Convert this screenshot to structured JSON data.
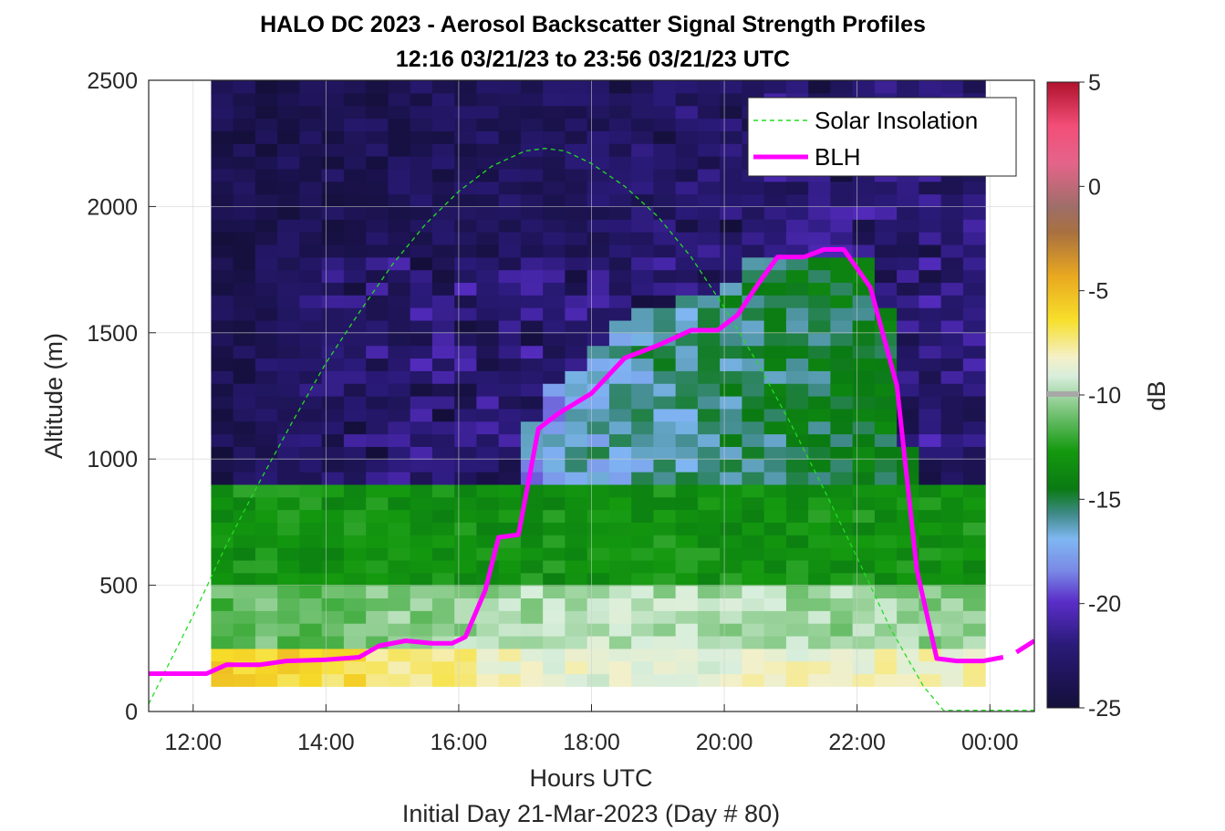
{
  "chart_data": {
    "type": "heatmap",
    "title": "HALO DC 2023 - Aerosol Backscatter Signal Strength Profiles",
    "subtitle": "12:16 03/21/23 to 23:56 03/21/23  UTC",
    "xlabel": "Hours UTC",
    "xlabel2": "Initial Day 21-Mar-2023 (Day # 80)",
    "ylabel": "Altitude (m)",
    "colorbar_label": "dB",
    "x_tick_labels": [
      "12:00",
      "14:00",
      "16:00",
      "18:00",
      "20:00",
      "22:00",
      "00:00"
    ],
    "x_ticks_hours": [
      12,
      14,
      16,
      18,
      20,
      22,
      24
    ],
    "y_ticks": [
      0,
      500,
      1000,
      1500,
      2000,
      2500
    ],
    "colorbar_ticks": [
      5,
      0,
      -5,
      -10,
      -15,
      -20,
      -25
    ],
    "xlim_hours": [
      11.33,
      24.67
    ],
    "ylim": [
      0,
      2500
    ],
    "clim": [
      -25,
      5
    ],
    "grid": true,
    "legend_position": "top-right",
    "series": [
      {
        "name": "Solar Insolation",
        "style": "dashed",
        "color": "#22dd22",
        "x": [
          11.33,
          12.0,
          12.5,
          13.0,
          13.5,
          14.0,
          14.5,
          15.0,
          15.5,
          16.0,
          16.5,
          17.0,
          17.3,
          17.6,
          18.0,
          18.5,
          19.0,
          19.5,
          20.0,
          20.5,
          21.0,
          21.5,
          22.0,
          22.5,
          23.0,
          23.3,
          23.6,
          24.67
        ],
        "y": [
          30,
          380,
          660,
          910,
          1150,
          1380,
          1580,
          1770,
          1930,
          2060,
          2160,
          2220,
          2230,
          2220,
          2170,
          2080,
          1960,
          1800,
          1600,
          1380,
          1140,
          880,
          610,
          330,
          100,
          5,
          5,
          5
        ]
      },
      {
        "name": "BLH",
        "style": "solid",
        "color": "#ff00ff",
        "x": [
          11.33,
          11.6,
          12.0,
          12.2,
          12.5,
          13.0,
          13.4,
          14.0,
          14.5,
          14.8,
          15.2,
          15.6,
          15.9,
          16.1,
          16.4,
          16.6,
          16.9,
          17.2,
          17.5,
          18.0,
          18.5,
          19.0,
          19.5,
          19.9,
          20.2,
          20.5,
          20.8,
          21.2,
          21.5,
          21.8,
          22.2,
          22.6,
          22.9,
          23.2,
          23.5,
          23.9,
          24.2
        ],
        "y": [
          150,
          150,
          150,
          150,
          185,
          185,
          200,
          205,
          215,
          260,
          280,
          270,
          270,
          295,
          480,
          690,
          700,
          1120,
          1180,
          1260,
          1400,
          1450,
          1510,
          1510,
          1570,
          1690,
          1800,
          1800,
          1830,
          1830,
          1680,
          1290,
          560,
          210,
          200,
          200,
          215
        ],
        "gap_after_x": 24.2,
        "x2": [
          24.4,
          24.67
        ],
        "y2": [
          235,
          280
        ]
      }
    ],
    "heatmap_layers": [
      {
        "alt_from": 100,
        "alt_to": 250,
        "early_db": -6,
        "mid_db": -10,
        "late_db": -9
      },
      {
        "alt_from": 250,
        "alt_to": 500,
        "early_db": -13,
        "mid_db": -11,
        "late_db": -12
      },
      {
        "alt_from": 500,
        "alt_to": 900,
        "early_db": -15,
        "mid_db": -15,
        "late_db": -15
      },
      {
        "alt_from": 900,
        "alt_to": 1800,
        "early_db": -24,
        "mid_db": -18,
        "late_db": -16
      },
      {
        "alt_from": 1800,
        "alt_to": 2500,
        "early_db": -24,
        "mid_db": -23,
        "late_db": -20
      }
    ]
  }
}
